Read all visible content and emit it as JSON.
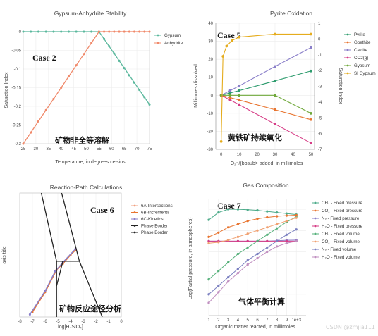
{
  "watermark": "CSDN @zmjia111",
  "panels": {
    "p1": {
      "title": "Gypsum-Anhydrite Stability",
      "xlabel": "Temperature, in degrees celsius",
      "ylabel": "Saturation Index",
      "case_label": "Case 2",
      "cn_label": "矿物非全等溶解",
      "legend": [
        {
          "name": "Gypsum",
          "color": "#5bb89d"
        },
        {
          "name": "Anhydrite",
          "color": "#f0896a"
        }
      ]
    },
    "p2": {
      "title": "Pyrite Oxidation",
      "xlabel": "O₂⁻/(bbsub> added, in millimoles",
      "ylabel_left": "Millimoles dissolved",
      "ylabel_right": "Saturation Index",
      "case_label": "Case 5",
      "cn_label": "黄铁矿持续氧化",
      "legend": [
        {
          "name": "Pyrite",
          "color": "#2e9c6e"
        },
        {
          "name": "Goethite",
          "color": "#e8742f"
        },
        {
          "name": "Calcite",
          "color": "#8a7fc9"
        },
        {
          "name": "CO2(g)",
          "color": "#d63c86"
        },
        {
          "name": "Gypsum",
          "color": "#6fa83a"
        },
        {
          "name": "SI Gypsum",
          "color": "#e5ac1d"
        }
      ]
    },
    "p3": {
      "title": "Reaction-Path Calculations",
      "xlabel": "log[H₄SiO₄]",
      "ylabel": "axis title",
      "case_label": "Case 6",
      "cn_label": "矿物反应途径分析",
      "legend": [
        {
          "name": "6A-Intersections",
          "color": "#f0a080"
        },
        {
          "name": "6B-Increments",
          "color": "#e8742f"
        },
        {
          "name": "6C-Kinetics",
          "color": "#8a7fc9"
        },
        {
          "name": "Phase Border",
          "color": "#222222"
        },
        {
          "name": "Phase Border",
          "color": "#222222"
        }
      ]
    },
    "p4": {
      "title": "Gas Composition",
      "xlabel": "Organic matter reacted, in millimoles",
      "ylabel": "Log(Partial pressure, in atmospheres)",
      "case_label": "Case 7",
      "cn_label": "气体平衡计算",
      "legend": [
        {
          "name": "CH₄ - Fixed pressure",
          "color": "#4dab8a"
        },
        {
          "name": "CO₂ - Fixed pressure",
          "color": "#e8742f"
        },
        {
          "name": "N₂ - Fixed pressure",
          "color": "#8a7fc9"
        },
        {
          "name": "H₂O - Fixed pressure",
          "color": "#d63c86"
        },
        {
          "name": "CH₄ - Fixed volume",
          "color": "#55b07a"
        },
        {
          "name": "CO₂ - Fixed volume",
          "color": "#f0a070"
        },
        {
          "name": "N₂ - Fixed volume",
          "color": "#7a7fc0"
        },
        {
          "name": "H₂O - Fixed volume",
          "color": "#c08fc0"
        }
      ]
    }
  },
  "chart_data": [
    {
      "type": "line",
      "title": "Gypsum-Anhydrite Stability",
      "xlabel": "Temperature, in degrees celsius",
      "ylabel": "Saturation Index",
      "xlim": [
        25,
        75
      ],
      "ylim": [
        -0.3,
        0
      ],
      "xticks": [
        25,
        30,
        35,
        40,
        45,
        50,
        55,
        60,
        65,
        70,
        75
      ],
      "yticks": [
        0,
        -0.05,
        -0.1,
        -0.15,
        -0.2,
        -0.25,
        -0.3
      ],
      "series": [
        {
          "name": "Gypsum",
          "color": "#5bb89d",
          "points": [
            [
              25,
              0
            ],
            [
              55,
              0
            ],
            [
              75,
              -0.195
            ]
          ]
        },
        {
          "name": "Anhydrite",
          "color": "#f0896a",
          "points": [
            [
              25,
              -0.3
            ],
            [
              55,
              0
            ],
            [
              75,
              0
            ]
          ]
        }
      ]
    },
    {
      "type": "line",
      "title": "Pyrite Oxidation",
      "xlim": [
        -3,
        52
      ],
      "ylim": [
        -30,
        40
      ],
      "y2lim": [
        -7,
        1
      ],
      "xticks": [
        0,
        10,
        20,
        30,
        40,
        50
      ],
      "yticks": [
        40,
        30,
        20,
        10,
        0,
        -10,
        -20,
        -30
      ],
      "y2ticks": [
        1,
        0,
        -1,
        -2,
        -3,
        -4,
        -5,
        -6,
        -7
      ],
      "series": [
        {
          "name": "Pyrite",
          "color": "#2e9c6e",
          "points": [
            [
              0,
              0
            ],
            [
              5,
              1.3
            ],
            [
              10,
              2.6
            ],
            [
              30,
              8
            ],
            [
              50,
              13.5
            ]
          ]
        },
        {
          "name": "Goethite",
          "color": "#e8742f",
          "points": [
            [
              0,
              0
            ],
            [
              5,
              -1.3
            ],
            [
              10,
              -2.6
            ],
            [
              30,
              -8
            ],
            [
              50,
              -13.5
            ]
          ]
        },
        {
          "name": "Calcite",
          "color": "#8a7fc9",
          "points": [
            [
              0,
              0
            ],
            [
              5,
              2.6
            ],
            [
              10,
              5.2
            ],
            [
              30,
              16
            ],
            [
              50,
              26.5
            ]
          ]
        },
        {
          "name": "CO2(g)",
          "color": "#d63c86",
          "points": [
            [
              0,
              0
            ],
            [
              5,
              -2.6
            ],
            [
              10,
              -5.2
            ],
            [
              30,
              -16
            ],
            [
              50,
              -26.5
            ]
          ]
        },
        {
          "name": "Gypsum",
          "color": "#6fa83a",
          "points": [
            [
              0,
              0
            ],
            [
              5,
              0
            ],
            [
              10,
              0
            ],
            [
              30,
              0
            ],
            [
              50,
              -10
            ]
          ]
        },
        {
          "name": "SI Gypsum",
          "color": "#e5ac1d",
          "axis": "right",
          "points": [
            [
              0,
              -6.5
            ],
            [
              1,
              -1.1
            ],
            [
              3,
              -0.45
            ],
            [
              6,
              -0.1
            ],
            [
              10,
              0.12
            ],
            [
              30,
              0.31
            ],
            [
              50,
              0.31
            ]
          ]
        }
      ]
    },
    {
      "type": "line",
      "title": "Reaction-Path Calculations",
      "xlabel": "log[H₄SiO₄]",
      "ylabel": "axis title",
      "xlim": [
        -8,
        0
      ],
      "ylim": [
        0,
        10
      ],
      "xticks": [
        -8,
        -7,
        -6,
        -5,
        -4,
        -3,
        -2,
        -1,
        0
      ],
      "series": [
        {
          "name": "6B-Increments",
          "color": "#e8742f",
          "points": [
            [
              -7,
              0.4
            ],
            [
              -6,
              2.0
            ],
            [
              -5.1,
              3.8
            ],
            [
              -4.6,
              4.3
            ],
            [
              -4,
              5.0
            ],
            [
              -3.6,
              5.4
            ]
          ]
        },
        {
          "name": "6C-Kinetics",
          "color": "#8a7fc9",
          "points": [
            [
              -7.2,
              0.2
            ],
            [
              -6,
              2.1
            ],
            [
              -5.2,
              3.7
            ],
            [
              -4.6,
              4.4
            ],
            [
              -3.6,
              5.5
            ]
          ]
        },
        {
          "name": "Phase Border",
          "color": "#222222",
          "points": [
            [
              -6.3,
              10
            ],
            [
              -5.1,
              4.5
            ],
            [
              -5.1,
              0
            ]
          ]
        },
        {
          "name": "Phase Border",
          "color": "#222222",
          "points": [
            [
              -4.7,
              10
            ],
            [
              -3.3,
              4.5
            ],
            [
              -1.5,
              0
            ]
          ]
        },
        {
          "name": "Phase Border",
          "color": "#222222",
          "points": [
            [
              -5.1,
              4.5
            ],
            [
              -3.3,
              4.5
            ]
          ]
        },
        {
          "name": "Phase Border",
          "color": "#222222",
          "points": [
            [
              -4.6,
              4.5
            ],
            [
              -5.1,
              2.5
            ]
          ]
        }
      ]
    },
    {
      "type": "line",
      "title": "Gas Composition",
      "xlabel": "Organic matter reacted, in millimoles",
      "ylabel": "Log(Partial pressure, in atmospheres)",
      "xlim": [
        1,
        11
      ],
      "ylim": [
        -5,
        0.5
      ],
      "xticks": [
        "1",
        "2",
        "3",
        "4",
        "5",
        "6",
        "7",
        "8",
        "9",
        "1e+3"
      ],
      "series": [
        {
          "name": "CH₄ - Fixed pressure",
          "color": "#4dab8a",
          "points": [
            [
              1,
              -0.5
            ],
            [
              2,
              -0.15
            ],
            [
              3,
              0
            ],
            [
              4,
              0
            ],
            [
              5,
              -0.02
            ],
            [
              6,
              -0.05
            ],
            [
              7,
              -0.1
            ],
            [
              8,
              -0.15
            ],
            [
              9,
              -0.2
            ],
            [
              10,
              -0.25
            ]
          ]
        },
        {
          "name": "CO₂ - Fixed pressure",
          "color": "#e8742f",
          "points": [
            [
              1,
              -1.3
            ],
            [
              2,
              -1.1
            ],
            [
              3,
              -0.85
            ],
            [
              4,
              -0.7
            ],
            [
              5,
              -0.55
            ],
            [
              6,
              -0.45
            ],
            [
              7,
              -0.38
            ],
            [
              8,
              -0.33
            ],
            [
              9,
              -0.3
            ],
            [
              10,
              -0.28
            ]
          ]
        },
        {
          "name": "N₂ - Fixed pressure",
          "color": "#8a7fc9",
          "points": [
            [
              1,
              -1.5
            ],
            [
              2,
              -1.5
            ],
            [
              3,
              -1.5
            ],
            [
              4,
              -1.5
            ],
            [
              5,
              -1.5
            ],
            [
              6,
              -1.5
            ],
            [
              7,
              -1.5
            ],
            [
              8,
              -1.48
            ],
            [
              9,
              -1.46
            ],
            [
              10,
              -1.45
            ]
          ]
        },
        {
          "name": "H₂O - Fixed pressure",
          "color": "#d63c86",
          "points": [
            [
              1,
              -1.5
            ],
            [
              2,
              -1.5
            ],
            [
              3,
              -1.5
            ],
            [
              4,
              -1.5
            ],
            [
              5,
              -1.5
            ],
            [
              6,
              -1.5
            ],
            [
              7,
              -1.5
            ],
            [
              8,
              -1.5
            ],
            [
              9,
              -1.5
            ],
            [
              10,
              -1.5
            ]
          ]
        },
        {
          "name": "CH₄ - Fixed volume",
          "color": "#55b07a",
          "points": [
            [
              1,
              -3.3
            ],
            [
              2,
              -2.9
            ],
            [
              3,
              -2.5
            ],
            [
              4,
              -2.1
            ],
            [
              5,
              -1.8
            ],
            [
              6,
              -1.5
            ],
            [
              7,
              -1.2
            ],
            [
              8,
              -0.9
            ],
            [
              9,
              -0.6
            ],
            [
              10,
              -0.35
            ]
          ]
        },
        {
          "name": "CO₂ - Fixed volume",
          "color": "#f0a070",
          "points": [
            [
              1,
              -1.6
            ],
            [
              2,
              -1.55
            ],
            [
              3,
              -1.45
            ],
            [
              4,
              -1.3
            ],
            [
              5,
              -1.15
            ],
            [
              6,
              -1.0
            ],
            [
              7,
              -0.85
            ],
            [
              8,
              -0.7
            ],
            [
              9,
              -0.55
            ],
            [
              10,
              -0.4
            ]
          ]
        },
        {
          "name": "N₂ - Fixed volume",
          "color": "#7a7fc0",
          "points": [
            [
              1,
              -4.0
            ],
            [
              2,
              -3.6
            ],
            [
              3,
              -3.2
            ],
            [
              4,
              -2.8
            ],
            [
              5,
              -2.4
            ],
            [
              6,
              -2.1
            ],
            [
              7,
              -1.8
            ],
            [
              8,
              -1.5
            ],
            [
              9,
              -1.2
            ],
            [
              10,
              -0.95
            ]
          ]
        },
        {
          "name": "H₂O - Fixed volume",
          "color": "#c08fc0",
          "points": [
            [
              1,
              -4.4
            ],
            [
              2,
              -3.9
            ],
            [
              3,
              -3.4
            ],
            [
              4,
              -3.0
            ],
            [
              5,
              -2.6
            ],
            [
              6,
              -2.3
            ],
            [
              7,
              -2.0
            ],
            [
              8,
              -1.75
            ],
            [
              9,
              -1.6
            ],
            [
              10,
              -1.5
            ]
          ]
        }
      ]
    }
  ]
}
